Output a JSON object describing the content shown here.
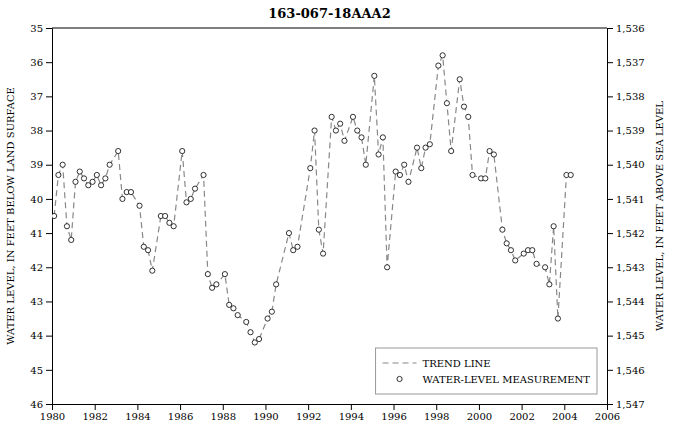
{
  "chart_data": {
    "type": "line",
    "title": "163-067-18AAA2",
    "ylabel": "WATER LEVEL, IN FEET BELOW LAND SURFACE",
    "y2label": "WATER LEVEL, IN FEET ABOVE SEA LEVEL",
    "x": [
      1980.1,
      1980.3,
      1980.5,
      1980.7,
      1980.9,
      1981.1,
      1981.3,
      1981.5,
      1981.7,
      1981.9,
      1982.1,
      1982.3,
      1982.5,
      1982.7,
      1983.1,
      1983.3,
      1983.5,
      1983.7,
      1984.1,
      1984.3,
      1984.5,
      1984.7,
      1985.1,
      1985.3,
      1985.5,
      1985.7,
      1986.1,
      1986.3,
      1986.5,
      1986.7,
      1987.1,
      1987.3,
      1987.5,
      1987.7,
      1988.1,
      1988.3,
      1988.5,
      1988.7,
      1989.1,
      1989.3,
      1989.5,
      1989.7,
      1990.1,
      1990.3,
      1990.5,
      1991.1,
      1991.3,
      1991.5,
      1992.1,
      1992.3,
      1992.5,
      1992.7,
      1993.1,
      1993.3,
      1993.5,
      1993.7,
      1994.1,
      1994.3,
      1994.5,
      1994.7,
      1995.1,
      1995.3,
      1995.5,
      1995.7,
      1996.1,
      1996.3,
      1996.5,
      1996.7,
      1997.1,
      1997.3,
      1997.5,
      1997.7,
      1998.1,
      1998.3,
      1998.5,
      1998.7,
      1999.1,
      1999.3,
      1999.5,
      1999.7,
      2000.1,
      2000.3,
      2000.5,
      2000.7,
      2001.1,
      2001.3,
      2001.5,
      2001.7,
      2002.1,
      2002.3,
      2002.5,
      2002.7,
      2003.1,
      2003.3,
      2003.5,
      2003.7,
      2004.1,
      2004.3
    ],
    "series": [
      {
        "name": "TREND LINE",
        "type": "line",
        "line_style": "dashed",
        "color": "#888888",
        "values": [
          40.5,
          39.3,
          39.0,
          40.8,
          41.2,
          39.5,
          39.2,
          39.4,
          39.6,
          39.5,
          39.3,
          39.6,
          39.4,
          39.0,
          38.6,
          40.0,
          39.8,
          39.8,
          40.2,
          41.4,
          41.5,
          42.1,
          40.5,
          40.5,
          40.7,
          40.8,
          38.6,
          40.1,
          40.0,
          39.7,
          39.3,
          42.2,
          42.6,
          42.5,
          42.2,
          43.1,
          43.2,
          43.4,
          43.6,
          43.9,
          44.2,
          44.1,
          43.5,
          43.3,
          42.5,
          41.0,
          41.5,
          41.4,
          39.1,
          38.0,
          40.9,
          41.6,
          37.6,
          38.0,
          37.8,
          38.3,
          37.6,
          38.0,
          38.2,
          39.0,
          36.4,
          38.7,
          38.2,
          42.0,
          39.2,
          39.3,
          39.0,
          39.5,
          38.5,
          39.1,
          38.5,
          38.4,
          36.1,
          35.8,
          37.2,
          38.6,
          36.5,
          37.3,
          37.6,
          39.3,
          39.4,
          39.4,
          38.6,
          38.7,
          40.9,
          41.3,
          41.5,
          41.8,
          41.6,
          41.5,
          41.5,
          41.9,
          42.0,
          42.5,
          40.8,
          43.5,
          39.3,
          39.3
        ]
      },
      {
        "name": "WATER-LEVEL MEASUREMENT",
        "type": "scatter",
        "marker": "circle",
        "color": "black",
        "values": [
          40.5,
          39.3,
          39.0,
          40.8,
          41.2,
          39.5,
          39.2,
          39.4,
          39.6,
          39.5,
          39.3,
          39.6,
          39.4,
          39.0,
          38.6,
          40.0,
          39.8,
          39.8,
          40.2,
          41.4,
          41.5,
          42.1,
          40.5,
          40.5,
          40.7,
          40.8,
          38.6,
          40.1,
          40.0,
          39.7,
          39.3,
          42.2,
          42.6,
          42.5,
          42.2,
          43.1,
          43.2,
          43.4,
          43.6,
          43.9,
          44.2,
          44.1,
          43.5,
          43.3,
          42.5,
          41.0,
          41.5,
          41.4,
          39.1,
          38.0,
          40.9,
          41.6,
          37.6,
          38.0,
          37.8,
          38.3,
          37.6,
          38.0,
          38.2,
          39.0,
          36.4,
          38.7,
          38.2,
          42.0,
          39.2,
          39.3,
          39.0,
          39.5,
          38.5,
          39.1,
          38.5,
          38.4,
          36.1,
          35.8,
          37.2,
          38.6,
          36.5,
          37.3,
          37.6,
          39.3,
          39.4,
          39.4,
          38.6,
          38.7,
          40.9,
          41.3,
          41.5,
          41.8,
          41.6,
          41.5,
          41.5,
          41.9,
          42.0,
          42.5,
          40.8,
          43.5,
          39.3,
          39.3
        ]
      }
    ],
    "xlim": [
      1980,
      2006
    ],
    "xticks": [
      1980,
      1982,
      1984,
      1986,
      1988,
      1990,
      1992,
      1994,
      1996,
      1998,
      2000,
      2002,
      2004,
      2006
    ],
    "ylim": [
      46,
      35
    ],
    "yticks": [
      35,
      36,
      37,
      38,
      39,
      40,
      41,
      42,
      43,
      44,
      45,
      46
    ],
    "y2lim": [
      1547,
      1536
    ],
    "y2ticks": [
      {
        "value": 1547,
        "label": "1,547"
      },
      {
        "value": 1546,
        "label": "1,546"
      },
      {
        "value": 1545,
        "label": "1,545"
      },
      {
        "value": 1544,
        "label": "1,544"
      },
      {
        "value": 1543,
        "label": "1,543"
      },
      {
        "value": 1542,
        "label": "1,542"
      },
      {
        "value": 1541,
        "label": "1,541"
      },
      {
        "value": 1540,
        "label": "1,540"
      },
      {
        "value": 1539,
        "label": "1,539"
      },
      {
        "value": 1538,
        "label": "1,538"
      },
      {
        "value": 1537,
        "label": "1,537"
      },
      {
        "value": 1536,
        "label": "1,536"
      }
    ],
    "grid": false,
    "legend": "lower right"
  }
}
